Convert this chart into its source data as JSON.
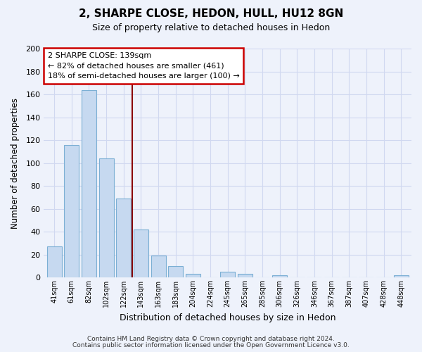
{
  "title": "2, SHARPE CLOSE, HEDON, HULL, HU12 8GN",
  "subtitle": "Size of property relative to detached houses in Hedon",
  "xlabel": "Distribution of detached houses by size in Hedon",
  "ylabel": "Number of detached properties",
  "bar_labels": [
    "41sqm",
    "61sqm",
    "82sqm",
    "102sqm",
    "122sqm",
    "143sqm",
    "163sqm",
    "183sqm",
    "204sqm",
    "224sqm",
    "245sqm",
    "265sqm",
    "285sqm",
    "306sqm",
    "326sqm",
    "346sqm",
    "367sqm",
    "387sqm",
    "407sqm",
    "428sqm",
    "448sqm"
  ],
  "bar_values": [
    27,
    116,
    164,
    104,
    69,
    42,
    19,
    10,
    3,
    0,
    5,
    3,
    0,
    2,
    0,
    0,
    0,
    0,
    0,
    0,
    2
  ],
  "bar_color": "#c6d9f0",
  "bar_edge_color": "#7bafd4",
  "vline_x_index": 4.5,
  "vline_color": "#8b0000",
  "ylim": [
    0,
    200
  ],
  "yticks": [
    0,
    20,
    40,
    60,
    80,
    100,
    120,
    140,
    160,
    180,
    200
  ],
  "annotation_line1": "2 SHARPE CLOSE: 139sqm",
  "annotation_line2": "← 82% of detached houses are smaller (461)",
  "annotation_line3": "18% of semi-detached houses are larger (100) →",
  "annotation_box_color": "#ffffff",
  "annotation_box_edge": "#cc0000",
  "footer_line1": "Contains HM Land Registry data © Crown copyright and database right 2024.",
  "footer_line2": "Contains public sector information licensed under the Open Government Licence v3.0.",
  "bg_color": "#eef2fb",
  "grid_color": "#d0d8f0"
}
